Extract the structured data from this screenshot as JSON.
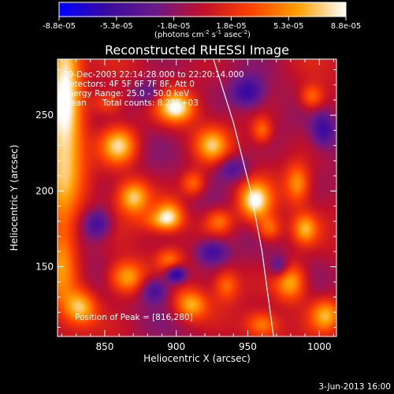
{
  "chart_data": {
    "type": "heatmap",
    "title": "Reconstructed RHESSI Image",
    "xlabel": "Heliocentric X (arcsec)",
    "ylabel": "Heliocentric Y (arcsec)",
    "xlim": [
      817,
      1012
    ],
    "ylim": [
      104,
      287
    ],
    "x_ticks": [
      850,
      900,
      950,
      1000
    ],
    "y_ticks": [
      150,
      200,
      250
    ],
    "colorbar": {
      "ticks": [
        "-8.8e-05",
        "-5.3e-05",
        "-1.8e-05",
        "1.8e-05",
        "5.3e-05",
        "8.8e-05"
      ],
      "unit_text": "(photons cm",
      "unit_exp1": "-2",
      "unit_mid": " s",
      "unit_exp2": "-1",
      "unit_tail": " asec",
      "unit_exp3": "-2",
      "unit_end": ")",
      "colors": [
        "#0000ff",
        "#3a0aa0",
        "#6a1a8a",
        "#c0102a",
        "#ff4000",
        "#ffa000",
        "#ffffff"
      ]
    },
    "info_lines": [
      "29-Dec-2003 22:14:28.000 to 22:20:14.000",
      "Detectors: 4F 5F 6F 7F 8F, Att 0",
      "Energy Range: 25.0 - 50.0 keV",
      "Clean      Total counts: 8.22E+03"
    ],
    "peak_text": "Position of Peak = [816,280]",
    "limb_curve": [
      [
        926,
        287
      ],
      [
        940,
        245
      ],
      [
        952,
        200
      ],
      [
        960,
        160
      ],
      [
        968,
        104
      ]
    ],
    "blobs": [
      {
        "x": 822,
        "y": 280,
        "sx": 8,
        "sy": 22,
        "v": 1.0
      },
      {
        "x": 822,
        "y": 230,
        "sx": 10,
        "sy": 25,
        "v": 0.9
      },
      {
        "x": 820,
        "y": 160,
        "sx": 8,
        "sy": 25,
        "v": 0.7
      },
      {
        "x": 860,
        "y": 230,
        "sx": 9,
        "sy": 9,
        "v": 0.9
      },
      {
        "x": 870,
        "y": 196,
        "sx": 8,
        "sy": 8,
        "v": 0.85
      },
      {
        "x": 852,
        "y": 258,
        "sx": 8,
        "sy": 6,
        "v": 0.5
      },
      {
        "x": 900,
        "y": 255,
        "sx": 9,
        "sy": 7,
        "v": 0.95
      },
      {
        "x": 925,
        "y": 230,
        "sx": 8,
        "sy": 8,
        "v": 0.7
      },
      {
        "x": 912,
        "y": 205,
        "sx": 6,
        "sy": 6,
        "v": 0.6
      },
      {
        "x": 895,
        "y": 185,
        "sx": 7,
        "sy": 7,
        "v": 0.7
      },
      {
        "x": 890,
        "y": 180,
        "sx": 10,
        "sy": 5,
        "v": 0.5
      },
      {
        "x": 865,
        "y": 143,
        "sx": 9,
        "sy": 8,
        "v": 0.85
      },
      {
        "x": 833,
        "y": 123,
        "sx": 8,
        "sy": 8,
        "v": 0.8
      },
      {
        "x": 910,
        "y": 125,
        "sx": 8,
        "sy": 7,
        "v": 0.75
      },
      {
        "x": 935,
        "y": 138,
        "sx": 6,
        "sy": 7,
        "v": 0.5
      },
      {
        "x": 955,
        "y": 193,
        "sx": 8,
        "sy": 9,
        "v": 1.0
      },
      {
        "x": 960,
        "y": 240,
        "sx": 5,
        "sy": 6,
        "v": 0.55
      },
      {
        "x": 965,
        "y": 175,
        "sx": 6,
        "sy": 6,
        "v": 0.6
      },
      {
        "x": 985,
        "y": 205,
        "sx": 6,
        "sy": 9,
        "v": 0.65
      },
      {
        "x": 995,
        "y": 262,
        "sx": 6,
        "sy": 6,
        "v": 0.6
      },
      {
        "x": 990,
        "y": 175,
        "sx": 6,
        "sy": 7,
        "v": 0.65
      },
      {
        "x": 980,
        "y": 140,
        "sx": 8,
        "sy": 9,
        "v": 0.85
      },
      {
        "x": 960,
        "y": 112,
        "sx": 8,
        "sy": 6,
        "v": 0.6
      },
      {
        "x": 1005,
        "y": 118,
        "sx": 8,
        "sy": 8,
        "v": 0.8
      },
      {
        "x": 930,
        "y": 180,
        "sx": 7,
        "sy": 6,
        "v": 0.55
      },
      {
        "x": 895,
        "y": 155,
        "sx": 6,
        "sy": 5,
        "v": 0.45
      },
      {
        "x": 845,
        "y": 178,
        "sx": 7,
        "sy": 7,
        "v": -0.6
      },
      {
        "x": 925,
        "y": 160,
        "sx": 8,
        "sy": 6,
        "v": -0.6
      },
      {
        "x": 885,
        "y": 135,
        "sx": 7,
        "sy": 6,
        "v": -0.55
      },
      {
        "x": 900,
        "y": 145,
        "sx": 5,
        "sy": 4,
        "v": -0.85
      },
      {
        "x": 950,
        "y": 265,
        "sx": 8,
        "sy": 7,
        "v": -0.6
      },
      {
        "x": 940,
        "y": 215,
        "sx": 8,
        "sy": 6,
        "v": -0.5
      },
      {
        "x": 1003,
        "y": 240,
        "sx": 6,
        "sy": 8,
        "v": -0.55
      },
      {
        "x": 972,
        "y": 150,
        "sx": 5,
        "sy": 5,
        "v": -0.5
      },
      {
        "x": 880,
        "y": 265,
        "sx": 7,
        "sy": 6,
        "v": -0.45
      }
    ]
  },
  "footer_date": "3-Jun-2013 16:00"
}
